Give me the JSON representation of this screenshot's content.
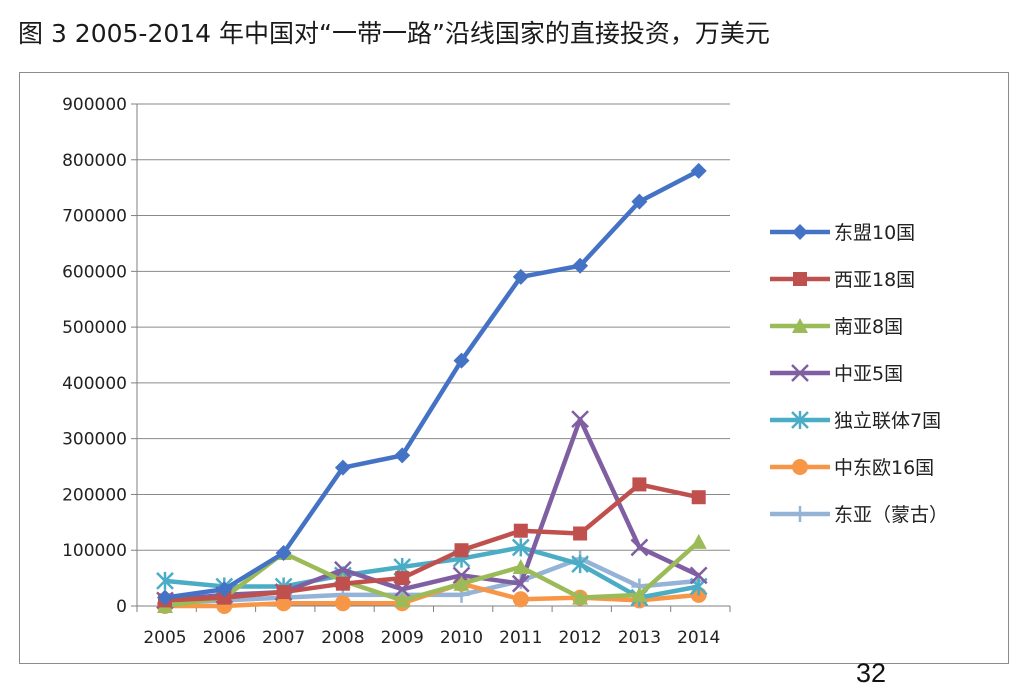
{
  "title": "图 3 2005-2014 年中国对“一带一路”沿线国家的直接投资，万美元",
  "page_number": "32",
  "chart_data": {
    "type": "line",
    "title": "图 3 2005-2014 年中国对“一带一路”沿线国家的直接投资，万美元",
    "xlabel": "",
    "ylabel": "",
    "x": [
      "2005",
      "2006",
      "2007",
      "2008",
      "2009",
      "2010",
      "2011",
      "2012",
      "2013",
      "2014"
    ],
    "ylim": [
      0,
      900000
    ],
    "yticks": [
      0,
      100000,
      200000,
      300000,
      400000,
      500000,
      600000,
      700000,
      800000,
      900000
    ],
    "ytick_labels": [
      "0",
      "100000",
      "200000",
      "300000",
      "400000",
      "500000",
      "600000",
      "700000",
      "800000",
      "900000"
    ],
    "grid": "horizontal",
    "legend": "right",
    "series": [
      {
        "name": "东盟10国",
        "color": "#4472c4",
        "marker": "diamond",
        "values": [
          15000,
          30000,
          95000,
          248000,
          270000,
          440000,
          590000,
          610000,
          725000,
          780000
        ]
      },
      {
        "name": "西亚18国",
        "color": "#c0504d",
        "marker": "square",
        "values": [
          10000,
          15000,
          25000,
          40000,
          50000,
          100000,
          135000,
          130000,
          218000,
          195000
        ]
      },
      {
        "name": "南亚8国",
        "color": "#9bbb59",
        "marker": "triangle",
        "values": [
          0,
          15000,
          95000,
          45000,
          10000,
          40000,
          70000,
          15000,
          20000,
          115000
        ]
      },
      {
        "name": "中亚5国",
        "color": "#7f5fa1",
        "marker": "x",
        "values": [
          10000,
          20000,
          25000,
          65000,
          30000,
          55000,
          40000,
          335000,
          105000,
          55000
        ]
      },
      {
        "name": "独立联体7国",
        "color": "#4bacc6",
        "marker": "asterisk",
        "values": [
          45000,
          35000,
          35000,
          55000,
          70000,
          85000,
          105000,
          75000,
          15000,
          35000
        ]
      },
      {
        "name": "中东欧16国",
        "color": "#f79646",
        "marker": "circle",
        "values": [
          0,
          0,
          5000,
          5000,
          5000,
          40000,
          12000,
          15000,
          10000,
          20000
        ]
      },
      {
        "name": "东亚（蒙古）",
        "color": "#95b3d7",
        "marker": "plus",
        "values": [
          5000,
          10000,
          15000,
          20000,
          20000,
          20000,
          45000,
          85000,
          35000,
          45000
        ]
      }
    ]
  }
}
